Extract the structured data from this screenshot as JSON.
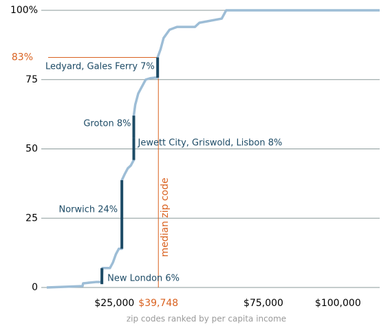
{
  "chart_data": {
    "type": "line",
    "x_label": "zip codes ranked by per capita income",
    "x": [
      2300,
      14300,
      14500,
      19000,
      20700,
      21000,
      23500,
      24500,
      25500,
      26500,
      27500,
      27500,
      28500,
      29500,
      30500,
      31500,
      31500,
      32000,
      33000,
      34000,
      35500,
      37000,
      38500,
      39500,
      39500,
      40500,
      41500,
      43500,
      46000,
      52000,
      53500,
      61000,
      62500,
      80000,
      114000
    ],
    "series": [
      {
        "color": "#9dbdd6",
        "values": [
          0,
          0.5,
          1.5,
          2,
          2,
          7,
          7,
          9,
          12,
          14,
          14,
          38.7,
          41,
          43,
          44,
          46,
          62,
          66,
          70,
          72,
          75,
          75.5,
          75.7,
          75.7,
          83,
          86,
          90,
          93,
          94,
          94,
          95.5,
          97,
          100,
          100,
          100
        ]
      }
    ],
    "highlights": [
      {
        "label": "New London 6%",
        "x": 20800,
        "y": [
          1.2,
          7
        ]
      },
      {
        "label": "Norwich 24%",
        "x": 27500,
        "y": [
          14,
          38.7
        ]
      },
      {
        "label": "Jewett City, Griswold, Lisbon 8%",
        "x": 31500,
        "y": [
          46,
          54
        ]
      },
      {
        "label": "Groton 8%",
        "x": 31500,
        "y": [
          54,
          62
        ]
      },
      {
        "label": "Ledyard, Gales Ferry 7%",
        "x": 39500,
        "y": [
          75.7,
          83
        ]
      }
    ],
    "highlight_color": "#1d4b66",
    "annotation_color": "#d9611f",
    "median": {
      "value": 39748,
      "label": "$39,748",
      "text": "median zip code"
    },
    "level": {
      "value": 83,
      "label": "83%"
    },
    "xlim": [
      0,
      114000
    ],
    "ylim": [
      0,
      100
    ],
    "xticks": [
      {
        "value": 25000,
        "label": "$25,000"
      },
      {
        "value": 75000,
        "label": "$75,000"
      },
      {
        "value": 100000,
        "label": "$100,000"
      }
    ],
    "yticks": [
      0,
      25,
      50,
      75,
      {
        "value": 100,
        "label": "100%"
      }
    ],
    "grid": true
  }
}
